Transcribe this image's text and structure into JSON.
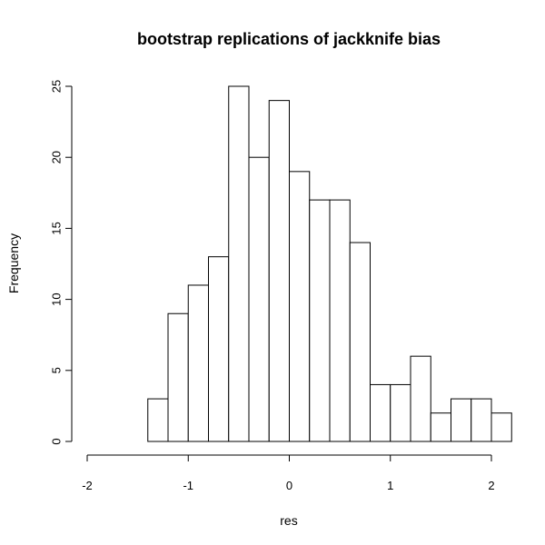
{
  "chart_data": {
    "type": "bar",
    "title": "bootstrap replications of jackknife bias",
    "xlabel": "res",
    "ylabel": "Frequency",
    "xlim": [
      -2.2,
      2.2
    ],
    "ylim": [
      0,
      25
    ],
    "x_ticks": [
      -2,
      -1,
      0,
      1,
      2
    ],
    "y_ticks": [
      0,
      5,
      10,
      15,
      20,
      25
    ],
    "grid": false,
    "bin_edges": [
      -1.4,
      -1.2,
      -1.0,
      -0.8,
      -0.6,
      -0.4,
      -0.2,
      0.0,
      0.2,
      0.4,
      0.6,
      0.8,
      1.0,
      1.2,
      1.4,
      1.6,
      1.8,
      2.0,
      2.2
    ],
    "values": [
      3,
      9,
      11,
      13,
      25,
      20,
      24,
      19,
      17,
      17,
      14,
      4,
      4,
      6,
      2,
      3,
      3,
      2
    ],
    "colors": {
      "bar_fill": "#ffffff",
      "bar_stroke": "#000000"
    }
  }
}
